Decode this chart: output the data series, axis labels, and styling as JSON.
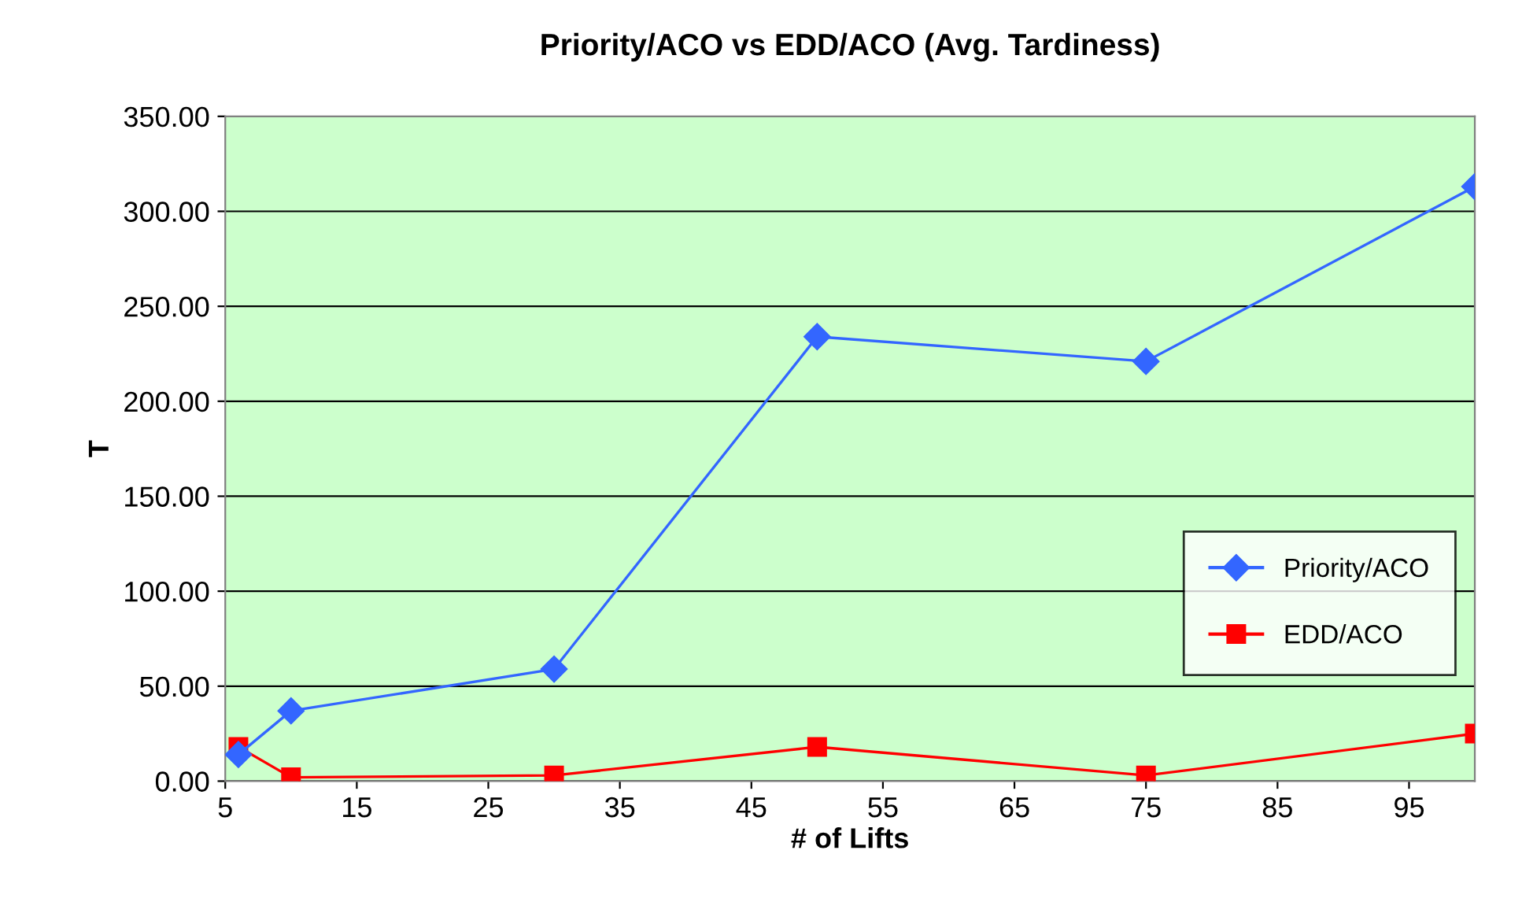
{
  "chart_data": {
    "type": "line",
    "title": "Priority/ACO vs EDD/ACO (Avg. Tardiness)",
    "xlabel": "# of Lifts",
    "ylabel": "T",
    "x": [
      6,
      10,
      30,
      50,
      75,
      100
    ],
    "series": [
      {
        "name": "Priority/ACO",
        "color": "#3366ff",
        "marker": "diamond",
        "values": [
          14,
          37,
          59,
          234,
          221,
          313
        ]
      },
      {
        "name": "EDD/ACO",
        "color": "#ff0000",
        "marker": "square",
        "values": [
          18,
          2,
          3,
          18,
          3,
          25
        ]
      }
    ],
    "xlim": [
      5,
      100
    ],
    "xticks": [
      5,
      15,
      25,
      35,
      45,
      55,
      65,
      75,
      85,
      95
    ],
    "ylim": [
      0,
      350
    ],
    "yticks": [
      {
        "value": 0,
        "label": "0.00"
      },
      {
        "value": 50,
        "label": "50.00"
      },
      {
        "value": 100,
        "label": "100.00"
      },
      {
        "value": 150,
        "label": "150.00"
      },
      {
        "value": 200,
        "label": "200.00"
      },
      {
        "value": 250,
        "label": "250.00"
      },
      {
        "value": 300,
        "label": "300.00"
      },
      {
        "value": 350,
        "label": "350.00"
      }
    ],
    "grid": "y",
    "legend": "lower right",
    "line_style": "solid"
  }
}
